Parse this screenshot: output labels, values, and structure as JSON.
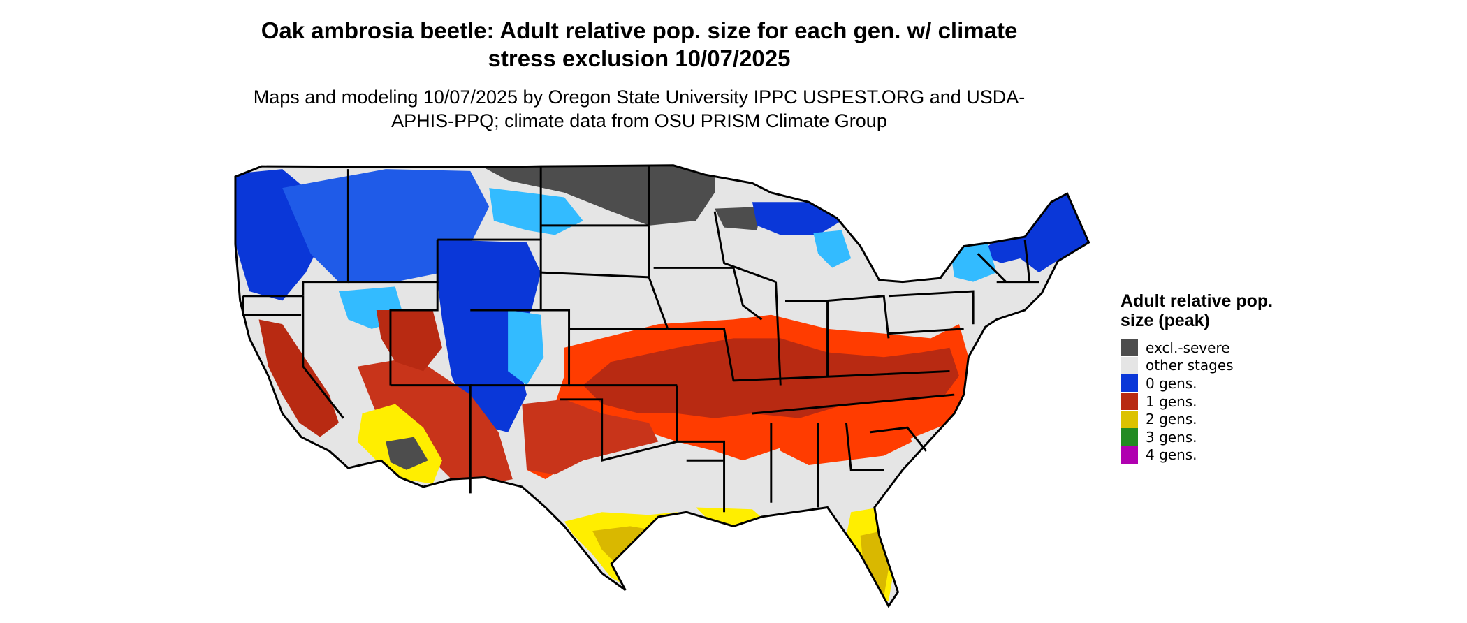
{
  "title": "Oak ambrosia beetle: Adult relative pop. size for each gen. w/ climate stress exclusion 10/07/2025",
  "subtitle": "Maps and modeling 10/07/2025 by Oregon State University IPPC USPEST.ORG and USDA-APHIS-PPQ; climate data from OSU PRISM Climate Group",
  "legend": {
    "title": "Adult relative pop. size (peak)",
    "items": [
      {
        "label": "excl.-severe",
        "color": "#4d4d4d"
      },
      {
        "label": "other stages",
        "color": "#e5e5e5"
      },
      {
        "label": "0 gens.",
        "color": "#0a37d8"
      },
      {
        "label": "1 gens.",
        "color": "#b82a12"
      },
      {
        "label": "2 gens.",
        "color": "#dcc200"
      },
      {
        "label": "3 gens.",
        "color": "#228b22"
      },
      {
        "label": "4 gens.",
        "color": "#b000b0"
      }
    ]
  },
  "map_colors": {
    "background_land": "#e5e5e5",
    "excluded": "#4d4d4d",
    "zero_gens_dark": "#0a37d8",
    "zero_gens_light": "#33bbff",
    "one_gen_orange": "#ff3c00",
    "one_gen_dark": "#b82a12",
    "two_gens_yellow": "#ffee00",
    "two_gens_dark": "#d9b800",
    "borders": "#000000"
  }
}
